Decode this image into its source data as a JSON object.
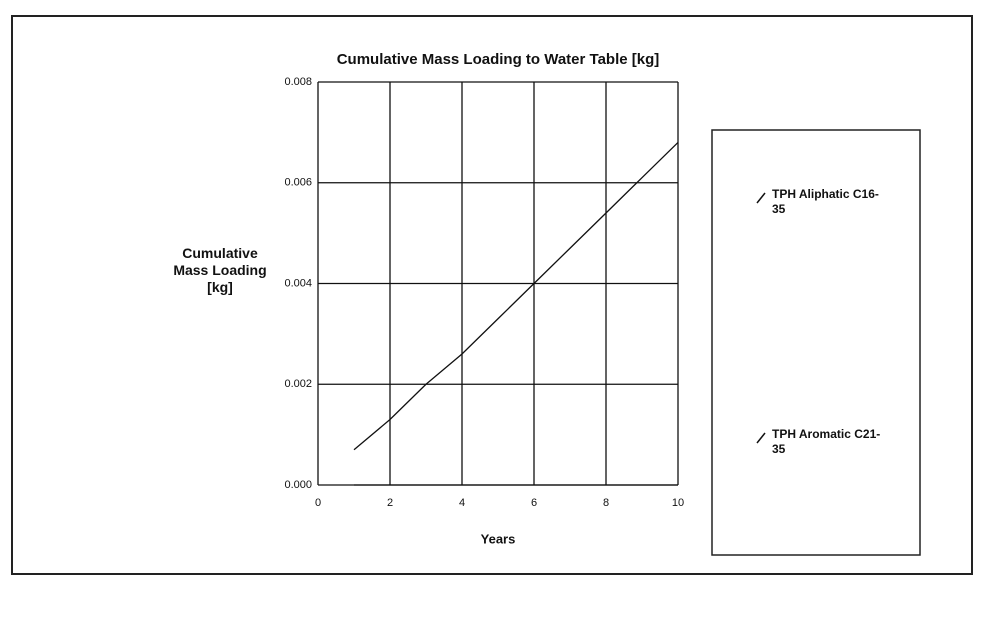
{
  "chart_data": {
    "type": "line",
    "title": "Cumulative Mass Loading to Water Table [kg]",
    "ylabel": "Cumulative\nMass Loading\n[kg]",
    "xlabel": "Years",
    "x": [
      1,
      2,
      3,
      4,
      5,
      6,
      7,
      8,
      9,
      10
    ],
    "series": [
      {
        "name": "TPH Aliphatic C16-35",
        "color": "#111111",
        "values": [
          0.0007,
          0.0013,
          0.002,
          0.0026,
          0.0033,
          0.004,
          0.0047,
          0.0054,
          0.0061,
          0.0068
        ]
      },
      {
        "name": "TPH Aromatic C21-35",
        "color": "#111111",
        "values": [
          0,
          0,
          0,
          0,
          0,
          0,
          0,
          0,
          0,
          0
        ]
      }
    ],
    "xlim": [
      0,
      10
    ],
    "xticks": [
      0,
      2,
      4,
      6,
      8,
      10
    ],
    "ylim": [
      0,
      0.008
    ],
    "yticks": [
      {
        "value": 0,
        "label": "0.000"
      },
      {
        "value": 0.002,
        "label": "0.002"
      },
      {
        "value": 0.004,
        "label": "0.004"
      },
      {
        "value": 0.006,
        "label": "0.006"
      },
      {
        "value": 0.008,
        "label": "0.008"
      }
    ],
    "grid": true,
    "legend": "right"
  }
}
